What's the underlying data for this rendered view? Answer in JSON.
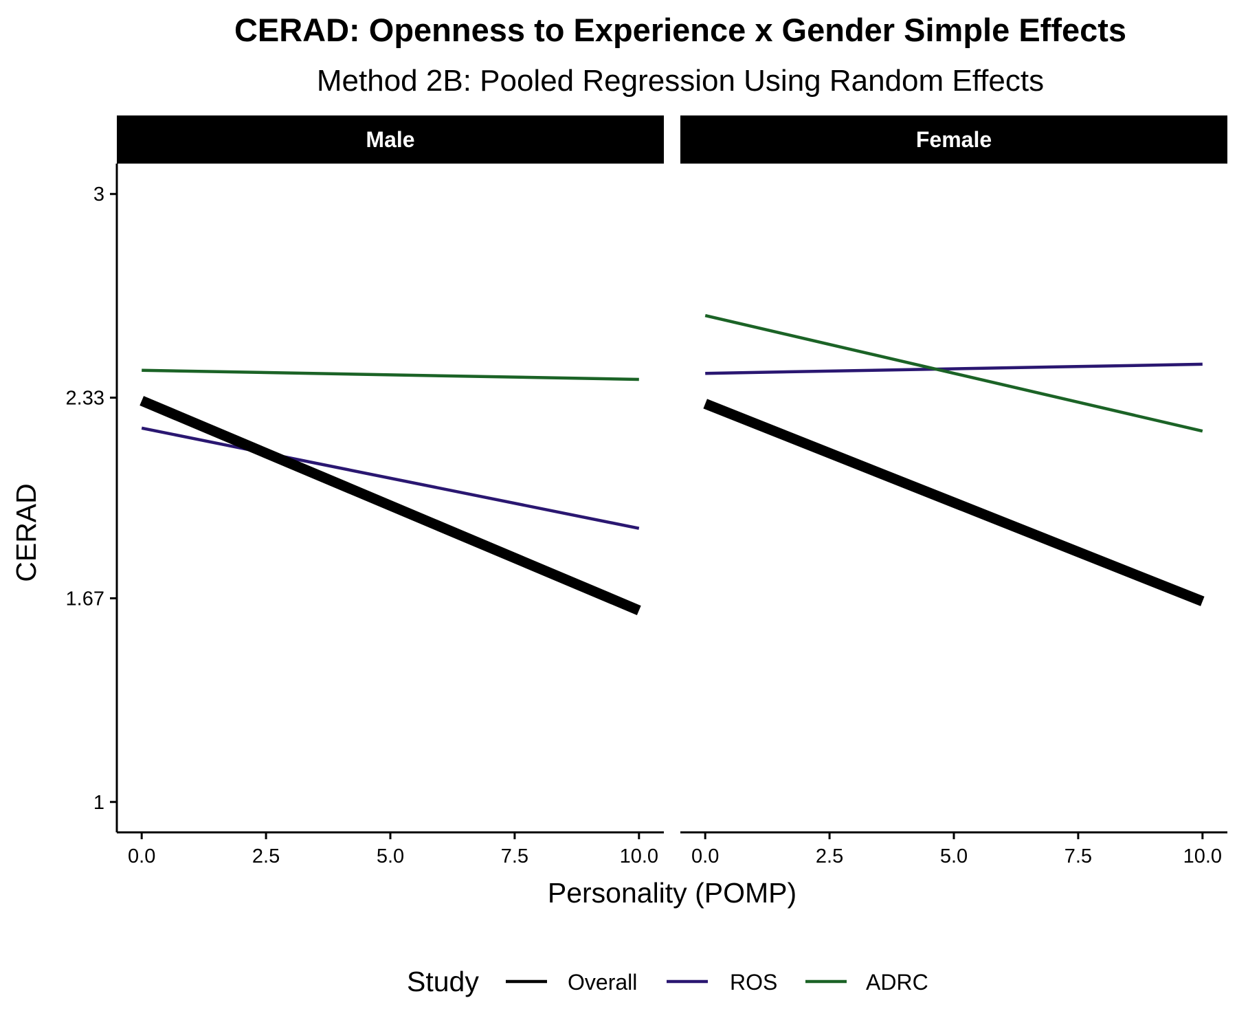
{
  "chart_data": {
    "type": "line",
    "title": "CERAD: Openness to Experience x Gender Simple Effects",
    "subtitle": "Method 2B: Pooled Regression Using Random Effects",
    "xlabel": "Personality (POMP)",
    "ylabel": "CERAD",
    "xlim": [
      -0.5,
      10.5
    ],
    "ylim": [
      0.9,
      3.1
    ],
    "x_ticks": [
      0,
      2.5,
      5,
      7.5,
      10
    ],
    "x_tick_labels": [
      "0.0",
      "2.5",
      "5.0",
      "7.5",
      "10.0"
    ],
    "y_ticks": [
      1,
      1.67,
      2.33,
      3
    ],
    "y_tick_labels": [
      "1",
      "1.67",
      "2.33",
      "3"
    ],
    "grid": false,
    "legend": {
      "title": "Study",
      "position": "bottom",
      "entries": [
        "Overall",
        "ROS",
        "ADRC"
      ]
    },
    "series_styles": [
      {
        "name": "Overall",
        "color": "#000000",
        "weight": "thick"
      },
      {
        "name": "ROS",
        "color": "#2a1771",
        "weight": "thin"
      },
      {
        "name": "ADRC",
        "color": "#1b6326",
        "weight": "thin"
      }
    ],
    "panels": [
      {
        "label": "Male",
        "series": [
          {
            "name": "Overall",
            "x": [
              0,
              10
            ],
            "y": [
              2.32,
              1.63
            ]
          },
          {
            "name": "ROS",
            "x": [
              0,
              10
            ],
            "y": [
              2.23,
              1.9
            ]
          },
          {
            "name": "ADRC",
            "x": [
              0,
              10
            ],
            "y": [
              2.42,
              2.39
            ]
          }
        ]
      },
      {
        "label": "Female",
        "series": [
          {
            "name": "Overall",
            "x": [
              0,
              10
            ],
            "y": [
              2.31,
              1.66
            ]
          },
          {
            "name": "ROS",
            "x": [
              0,
              10
            ],
            "y": [
              2.41,
              2.44
            ]
          },
          {
            "name": "ADRC",
            "x": [
              0,
              10
            ],
            "y": [
              2.6,
              2.22
            ]
          }
        ]
      }
    ]
  }
}
